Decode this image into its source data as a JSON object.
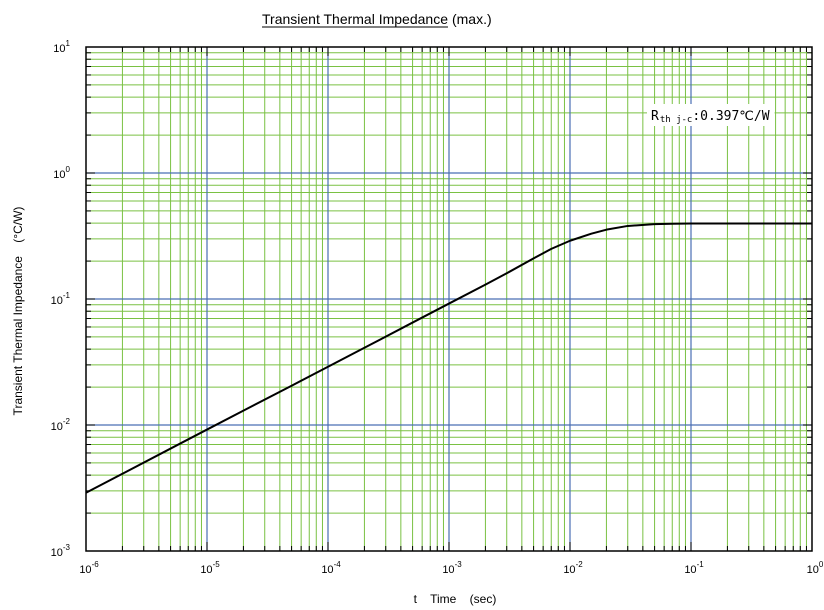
{
  "chart_data": {
    "type": "line",
    "title": "Transient Thermal Impedance",
    "title_suffix": "(max.)",
    "xlabel": "t    Time    (sec)",
    "ylabel": "Transient Thermal Impedance    (°C/W)",
    "x_scale": "log",
    "y_scale": "log",
    "xlim": [
      1e-06,
      1
    ],
    "ylim": [
      0.001,
      10
    ],
    "x_ticks": [
      {
        "base": "10",
        "exp": "-6"
      },
      {
        "base": "10",
        "exp": "-5"
      },
      {
        "base": "10",
        "exp": "-4"
      },
      {
        "base": "10",
        "exp": "-3"
      },
      {
        "base": "10",
        "exp": "-2"
      },
      {
        "base": "10",
        "exp": "-1"
      },
      {
        "base": "10",
        "exp": "0"
      }
    ],
    "y_ticks": [
      {
        "base": "10",
        "exp": "-3"
      },
      {
        "base": "10",
        "exp": "-2"
      },
      {
        "base": "10",
        "exp": "-1"
      },
      {
        "base": "10",
        "exp": "0"
      },
      {
        "base": "10",
        "exp": "1"
      }
    ],
    "grid": true,
    "grid_colors": {
      "major": "#4a6fb3",
      "minor": "#7ac143"
    },
    "line_color": "#000000",
    "annotation": {
      "main": "R",
      "sub": "th j-c",
      "value": ":0.397℃/W"
    },
    "series": [
      {
        "x": [
          1e-06,
          2e-06,
          5e-06,
          1e-05,
          2e-05,
          5e-05,
          0.0001,
          0.0002,
          0.0005,
          0.001,
          0.002,
          0.003,
          0.005,
          0.007,
          0.01,
          0.015,
          0.02,
          0.03,
          0.05,
          0.07,
          0.1,
          0.2,
          0.5,
          1
        ],
        "y": [
          0.0029,
          0.0041,
          0.0065,
          0.0092,
          0.013,
          0.0205,
          0.029,
          0.041,
          0.065,
          0.092,
          0.13,
          0.16,
          0.21,
          0.25,
          0.29,
          0.33,
          0.355,
          0.38,
          0.393,
          0.396,
          0.397,
          0.397,
          0.397,
          0.397
        ]
      }
    ]
  }
}
